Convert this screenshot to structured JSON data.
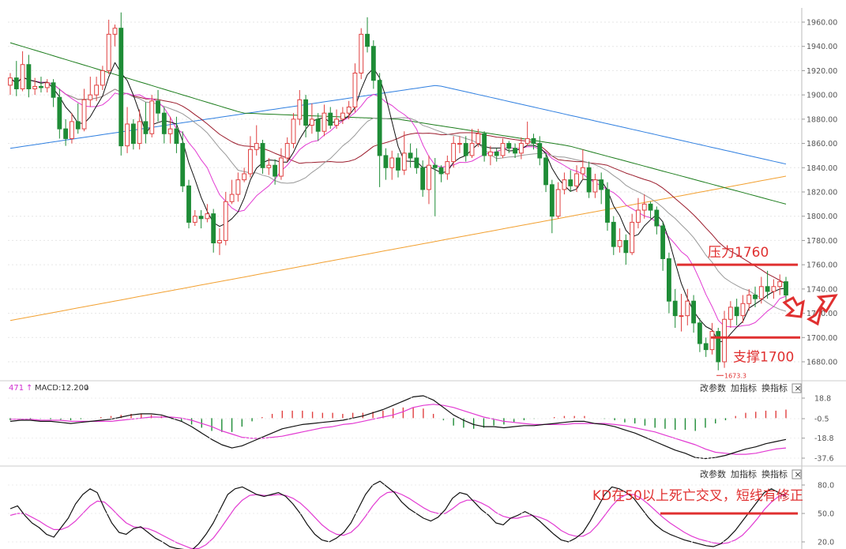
{
  "chart_data": [
    {
      "type": "candlestick",
      "title": "",
      "ylim": [
        1670,
        1970
      ],
      "ytick_labels": [
        "1960.00",
        "1940.00",
        "1920.00",
        "1900.00",
        "1880.00",
        "1860.00",
        "1840.00",
        "1820.00",
        "1800.00",
        "1780.00",
        "1760.00",
        "1740.00",
        "1720.00",
        "1700.00",
        "1680.00"
      ],
      "annotations": {
        "resistance_label": "压力1760",
        "resistance_value": 1760,
        "support_label": "支撑1700",
        "support_value": 1700,
        "low_label": "1673.3"
      },
      "candles": [
        [
          1908,
          1914,
          1900,
          1918
        ],
        [
          1914,
          1905,
          1899,
          1928
        ],
        [
          1905,
          1925,
          1903,
          1936
        ],
        [
          1925,
          1905,
          1898,
          1933
        ],
        [
          1905,
          1907,
          1900,
          1914
        ],
        [
          1907,
          1906,
          1902,
          1915
        ],
        [
          1906,
          1910,
          1902,
          1913
        ],
        [
          1910,
          1898,
          1890,
          1913
        ],
        [
          1898,
          1872,
          1864,
          1905
        ],
        [
          1872,
          1864,
          1858,
          1880
        ],
        [
          1864,
          1878,
          1860,
          1885
        ],
        [
          1878,
          1872,
          1868,
          1893
        ],
        [
          1872,
          1896,
          1870,
          1905
        ],
        [
          1896,
          1900,
          1890,
          1915
        ],
        [
          1900,
          1908,
          1895,
          1915
        ],
        [
          1908,
          1920,
          1904,
          1924
        ],
        [
          1920,
          1950,
          1917,
          1962
        ],
        [
          1950,
          1955,
          1940,
          1958
        ],
        [
          1955,
          1858,
          1850,
          1968
        ],
        [
          1858,
          1876,
          1852,
          1890
        ],
        [
          1876,
          1860,
          1855,
          1880
        ],
        [
          1860,
          1878,
          1855,
          1888
        ],
        [
          1878,
          1868,
          1860,
          1894
        ],
        [
          1868,
          1895,
          1865,
          1900
        ],
        [
          1895,
          1885,
          1878,
          1904
        ],
        [
          1885,
          1868,
          1860,
          1890
        ],
        [
          1868,
          1872,
          1860,
          1882
        ],
        [
          1872,
          1860,
          1852,
          1882
        ],
        [
          1860,
          1825,
          1820,
          1870
        ],
        [
          1825,
          1795,
          1790,
          1830
        ],
        [
          1795,
          1800,
          1792,
          1805
        ],
        [
          1800,
          1798,
          1790,
          1805
        ],
        [
          1798,
          1802,
          1795,
          1810
        ],
        [
          1802,
          1778,
          1770,
          1806
        ],
        [
          1778,
          1780,
          1768,
          1790
        ],
        [
          1780,
          1812,
          1776,
          1820
        ],
        [
          1812,
          1818,
          1810,
          1830
        ],
        [
          1818,
          1830,
          1812,
          1836
        ],
        [
          1830,
          1835,
          1828,
          1840
        ],
        [
          1835,
          1855,
          1832,
          1866
        ],
        [
          1855,
          1860,
          1850,
          1875
        ],
        [
          1860,
          1840,
          1835,
          1863
        ],
        [
          1840,
          1842,
          1834,
          1848
        ],
        [
          1842,
          1833,
          1826,
          1847
        ],
        [
          1833,
          1848,
          1830,
          1856
        ],
        [
          1848,
          1860,
          1845,
          1865
        ],
        [
          1860,
          1880,
          1856,
          1885
        ],
        [
          1880,
          1896,
          1875,
          1904
        ],
        [
          1896,
          1875,
          1865,
          1900
        ],
        [
          1875,
          1880,
          1868,
          1893
        ],
        [
          1880,
          1870,
          1862,
          1885
        ],
        [
          1870,
          1885,
          1866,
          1892
        ],
        [
          1885,
          1875,
          1872,
          1890
        ],
        [
          1875,
          1880,
          1872,
          1888
        ],
        [
          1880,
          1885,
          1876,
          1890
        ],
        [
          1885,
          1890,
          1880,
          1895
        ],
        [
          1890,
          1918,
          1886,
          1926
        ],
        [
          1918,
          1950,
          1913,
          1955
        ],
        [
          1950,
          1940,
          1935,
          1964
        ],
        [
          1940,
          1912,
          1905,
          1945
        ],
        [
          1912,
          1850,
          1824,
          1918
        ],
        [
          1850,
          1840,
          1830,
          1856
        ],
        [
          1840,
          1848,
          1830,
          1854
        ],
        [
          1848,
          1838,
          1832,
          1852
        ],
        [
          1838,
          1852,
          1834,
          1870
        ],
        [
          1852,
          1848,
          1840,
          1860
        ],
        [
          1848,
          1840,
          1835,
          1856
        ],
        [
          1840,
          1822,
          1816,
          1846
        ],
        [
          1822,
          1842,
          1810,
          1850
        ],
        [
          1842,
          1840,
          1800,
          1848
        ],
        [
          1840,
          1835,
          1828,
          1842
        ],
        [
          1835,
          1845,
          1830,
          1850
        ],
        [
          1845,
          1860,
          1840,
          1866
        ],
        [
          1860,
          1860,
          1852,
          1866
        ],
        [
          1860,
          1850,
          1845,
          1866
        ],
        [
          1850,
          1860,
          1848,
          1872
        ],
        [
          1860,
          1868,
          1857,
          1872
        ],
        [
          1868,
          1850,
          1845,
          1870
        ],
        [
          1850,
          1853,
          1842,
          1858
        ],
        [
          1853,
          1850,
          1845,
          1856
        ],
        [
          1850,
          1860,
          1848,
          1864
        ],
        [
          1860,
          1856,
          1852,
          1862
        ],
        [
          1856,
          1852,
          1848,
          1860
        ],
        [
          1852,
          1860,
          1847,
          1865
        ],
        [
          1860,
          1864,
          1858,
          1878
        ],
        [
          1864,
          1860,
          1855,
          1868
        ],
        [
          1860,
          1848,
          1842,
          1866
        ],
        [
          1848,
          1826,
          1820,
          1852
        ],
        [
          1826,
          1800,
          1786,
          1830
        ],
        [
          1800,
          1822,
          1798,
          1828
        ],
        [
          1822,
          1830,
          1818,
          1836
        ],
        [
          1830,
          1825,
          1820,
          1838
        ],
        [
          1825,
          1835,
          1820,
          1842
        ],
        [
          1835,
          1840,
          1830,
          1855
        ],
        [
          1840,
          1820,
          1815,
          1845
        ],
        [
          1820,
          1830,
          1815,
          1835
        ],
        [
          1830,
          1822,
          1810,
          1836
        ],
        [
          1822,
          1795,
          1788,
          1828
        ],
        [
          1795,
          1775,
          1768,
          1800
        ],
        [
          1775,
          1780,
          1770,
          1790
        ],
        [
          1780,
          1770,
          1760,
          1785
        ],
        [
          1770,
          1795,
          1768,
          1802
        ],
        [
          1795,
          1805,
          1790,
          1815
        ],
        [
          1805,
          1810,
          1798,
          1818
        ],
        [
          1810,
          1805,
          1798,
          1812
        ],
        [
          1805,
          1792,
          1785,
          1808
        ],
        [
          1792,
          1765,
          1755,
          1795
        ],
        [
          1765,
          1730,
          1720,
          1770
        ],
        [
          1730,
          1718,
          1708,
          1740
        ],
        [
          1718,
          1718,
          1705,
          1736
        ],
        [
          1718,
          1730,
          1710,
          1740
        ],
        [
          1730,
          1712,
          1704,
          1735
        ],
        [
          1712,
          1695,
          1688,
          1716
        ],
        [
          1695,
          1690,
          1684,
          1700
        ],
        [
          1690,
          1705,
          1686,
          1712
        ],
        [
          1705,
          1680,
          1673,
          1708
        ],
        [
          1680,
          1715,
          1675,
          1722
        ],
        [
          1715,
          1725,
          1708,
          1730
        ],
        [
          1725,
          1718,
          1710,
          1732
        ],
        [
          1718,
          1728,
          1712,
          1735
        ],
        [
          1728,
          1735,
          1722,
          1740
        ],
        [
          1735,
          1732,
          1725,
          1742
        ],
        [
          1732,
          1742,
          1728,
          1750
        ],
        [
          1742,
          1738,
          1732,
          1755
        ],
        [
          1738,
          1742,
          1732,
          1748
        ],
        [
          1742,
          1746,
          1735,
          1752
        ],
        [
          1746,
          1735,
          1728,
          1750
        ]
      ]
    },
    {
      "type": "macd",
      "header": {
        "count": "471",
        "arrow_up": "↑",
        "label": "MACD:12.200",
        "arrow_down": "↓"
      },
      "ylim": [
        -45,
        28
      ],
      "ytick_labels": [
        "18.8",
        "-0.5",
        "-18.8",
        "-37.6"
      ],
      "dif": [
        -3,
        -2,
        -2,
        -3,
        -3,
        -4,
        -5,
        -4,
        -3,
        -2,
        -1,
        1,
        3,
        4,
        4,
        3,
        0,
        -3,
        -8,
        -14,
        -20,
        -25,
        -28,
        -26,
        -22,
        -18,
        -14,
        -10,
        -8,
        -6,
        -5,
        -4,
        -3,
        -2,
        0,
        2,
        5,
        8,
        12,
        16,
        20,
        21,
        17,
        10,
        3,
        -2,
        -6,
        -8,
        -8,
        -9,
        -8,
        -7,
        -7,
        -6,
        -5,
        -4,
        -3,
        -3,
        -5,
        -6,
        -8,
        -11,
        -14,
        -18,
        -22,
        -26,
        -30,
        -33,
        -37,
        -38,
        -37,
        -35,
        -32,
        -29,
        -27,
        -24,
        -22,
        -20
      ],
      "dea": [
        -1,
        -1,
        -1,
        -2,
        -2,
        -2,
        -3,
        -3,
        -3,
        -3,
        -3,
        -2,
        -1,
        0,
        1,
        1,
        1,
        0,
        -2,
        -5,
        -8,
        -12,
        -15,
        -18,
        -19,
        -19,
        -18,
        -17,
        -15,
        -13,
        -11,
        -9,
        -8,
        -6,
        -5,
        -3,
        -1,
        1,
        3,
        6,
        10,
        12,
        13,
        12,
        10,
        7,
        4,
        1,
        -1,
        -3,
        -4,
        -5,
        -6,
        -6,
        -6,
        -6,
        -5,
        -5,
        -5,
        -5,
        -6,
        -7,
        -9,
        -11,
        -13,
        -16,
        -19,
        -22,
        -25,
        -29,
        -32,
        -33,
        -34,
        -34,
        -33,
        -31,
        -29,
        -28
      ],
      "hist": [
        -2,
        -1,
        -1,
        -1,
        -1,
        -2,
        -2,
        -1,
        0,
        1,
        2,
        3,
        4,
        4,
        3,
        2,
        -1,
        -3,
        -6,
        -9,
        -12,
        -13,
        -13,
        -8,
        -3,
        1,
        4,
        7,
        7,
        7,
        6,
        5,
        5,
        4,
        5,
        5,
        6,
        7,
        9,
        10,
        10,
        9,
        4,
        -2,
        -7,
        -9,
        -10,
        -9,
        -7,
        -6,
        -4,
        -2,
        -1,
        0,
        1,
        2,
        2,
        2,
        0,
        -1,
        -2,
        -4,
        -5,
        -7,
        -9,
        -10,
        -11,
        -11,
        -12,
        -9,
        -5,
        -2,
        2,
        5,
        6,
        7,
        7,
        8
      ]
    },
    {
      "type": "kd",
      "ylim": [
        10,
        100
      ],
      "ytick_labels": [
        "80.0",
        "50.0",
        "20.0"
      ],
      "annotation": "KD在50以上死亡交叉，短线有修正",
      "line_value": 50,
      "k": [
        55,
        58,
        48,
        40,
        35,
        28,
        25,
        35,
        45,
        60,
        70,
        76,
        72,
        55,
        40,
        30,
        28,
        34,
        36,
        30,
        24,
        20,
        15,
        13,
        12,
        11,
        18,
        28,
        40,
        55,
        70,
        76,
        78,
        74,
        70,
        68,
        70,
        72,
        68,
        60,
        50,
        38,
        28,
        22,
        20,
        24,
        30,
        40,
        55,
        70,
        80,
        84,
        78,
        72,
        62,
        55,
        50,
        45,
        42,
        46,
        54,
        66,
        72,
        70,
        62,
        54,
        48,
        40,
        38,
        45,
        48,
        52,
        48,
        42,
        35,
        28,
        22,
        20,
        24,
        30,
        42,
        56,
        70,
        78,
        76,
        72,
        66,
        56,
        46,
        38,
        32,
        28,
        25,
        22,
        20,
        18,
        16,
        15,
        18,
        24,
        32,
        42,
        52,
        62,
        72,
        76,
        72,
        68
      ],
      "d": [
        48,
        50,
        50,
        46,
        42,
        37,
        33,
        33,
        36,
        42,
        50,
        58,
        63,
        62,
        55,
        47,
        40,
        36,
        35,
        34,
        31,
        27,
        23,
        19,
        16,
        13,
        13,
        17,
        24,
        34,
        45,
        56,
        64,
        69,
        70,
        69,
        69,
        70,
        69,
        66,
        61,
        54,
        46,
        38,
        32,
        28,
        27,
        30,
        37,
        47,
        58,
        67,
        72,
        73,
        70,
        66,
        61,
        56,
        52,
        50,
        50,
        55,
        61,
        64,
        64,
        61,
        57,
        51,
        47,
        45,
        45,
        47,
        48,
        46,
        43,
        38,
        32,
        28,
        26,
        26,
        30,
        38,
        48,
        58,
        66,
        70,
        70,
        66,
        60,
        53,
        46,
        40,
        35,
        30,
        26,
        23,
        21,
        19,
        18,
        19,
        22,
        27,
        35,
        44,
        54,
        62,
        68,
        70
      ]
    }
  ],
  "panel_buttons": {
    "params": "改参数",
    "add": "加指标",
    "swap": "换指标",
    "close": "×"
  },
  "colors": {
    "up": "#e04040",
    "down": "#1e8c36",
    "ma5": "#111111",
    "ma10": "#e23ad2",
    "ma20": "#999999",
    "ma30": "#9b1c2c",
    "ma60": "#1b7c1b",
    "ma120": "#2f7fe0",
    "ma250": "#f2a030",
    "annotation": "#e03030"
  }
}
